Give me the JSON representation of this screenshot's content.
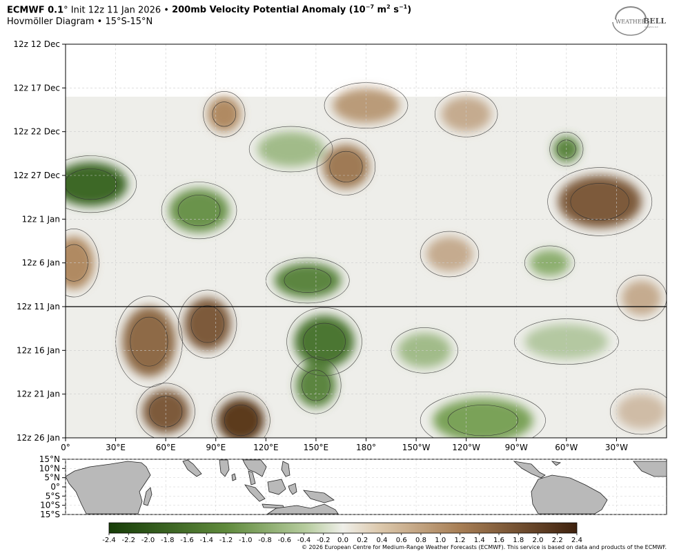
{
  "header": {
    "model": "ECMWF 0.1",
    "init": "° Init 12z 11 Jan 2026 •",
    "field": "200mb Velocity Potential Anomaly (10",
    "units_exp": "−7",
    "units_mid": " m",
    "units_exp2": "2",
    "units_end": " s",
    "units_exp3": "−1",
    "units_close": ")",
    "subtitle": "Hovmöller Diagram • 15°S-15°N"
  },
  "logo": {
    "text_a": "WEATHER",
    "text_b": "BELL",
    "sub": "Analytics LLC"
  },
  "footer": "© 2026 European Centre for Medium-Range Weather Forecasts (ECMWF). This service is based on data and products of the ECMWF.",
  "colors": {
    "neg_strong": "#1e4a0c",
    "neg_mid": "#7aa258",
    "neutral": "#eeeeea",
    "pos_mid": "#b08a62",
    "pos_strong": "#4a2a12",
    "land": "#b9b9b9"
  },
  "chart_data": {
    "type": "heatmap",
    "title": "200mb Velocity Potential Anomaly",
    "subtitle": "Hovmöller Diagram • 15°S-15°N",
    "y_ticks": [
      "12z 12 Dec",
      "12z 17 Dec",
      "12z 22 Dec",
      "12z 27 Dec",
      "12z 1 Jan",
      "12z 6 Jan",
      "12z 11 Jan",
      "12z 16 Jan",
      "12z 21 Jan",
      "12z 26 Jan"
    ],
    "x_ticks": [
      "0°",
      "30°E",
      "60°E",
      "90°E",
      "120°E",
      "150°E",
      "180°",
      "150°W",
      "120°W",
      "90°W",
      "60°W",
      "30°W"
    ],
    "x_range": [
      0,
      360
    ],
    "data_start": "12z 18 Dec",
    "forecast_init_line": "12z 11 Jan",
    "grid": true,
    "colorbar": {
      "ticks": [
        "-2.4",
        "-2.2",
        "-2.0",
        "-1.8",
        "-1.6",
        "-1.4",
        "-1.2",
        "-1.0",
        "-0.8",
        "-0.6",
        "-0.4",
        "-0.2",
        "0.0",
        "0.2",
        "0.4",
        "0.6",
        "0.8",
        "1.0",
        "1.2",
        "1.4",
        "1.6",
        "1.8",
        "2.0",
        "2.2",
        "2.4"
      ],
      "range": [
        -2.4,
        2.4
      ]
    },
    "anomaly_blobs": [
      {
        "lon": 15,
        "date": "28 Dec",
        "value": -2.0,
        "lon_spread": 22,
        "day_spread": 2.5
      },
      {
        "lon": 80,
        "date": "31 Dec",
        "value": -1.4,
        "lon_spread": 18,
        "day_spread": 2.5
      },
      {
        "lon": 95,
        "date": "20 Dec",
        "value": 1.2,
        "lon_spread": 10,
        "day_spread": 2
      },
      {
        "lon": 135,
        "date": "24 Dec",
        "value": -0.8,
        "lon_spread": 20,
        "day_spread": 2
      },
      {
        "lon": 168,
        "date": "26 Dec",
        "value": 1.4,
        "lon_spread": 14,
        "day_spread": 2.5
      },
      {
        "lon": 180,
        "date": "19 Dec",
        "value": 1.0,
        "lon_spread": 20,
        "day_spread": 2
      },
      {
        "lon": 240,
        "date": "20 Dec",
        "value": 0.8,
        "lon_spread": 15,
        "day_spread": 2
      },
      {
        "lon": 300,
        "date": "24 Dec",
        "value": -1.6,
        "lon_spread": 8,
        "day_spread": 1.5
      },
      {
        "lon": 320,
        "date": "30 Dec",
        "value": 1.8,
        "lon_spread": 25,
        "day_spread": 3
      },
      {
        "lon": 5,
        "date": "6 Jan",
        "value": 1.2,
        "lon_spread": 12,
        "day_spread": 3
      },
      {
        "lon": 145,
        "date": "8 Jan",
        "value": -1.6,
        "lon_spread": 20,
        "day_spread": 2
      },
      {
        "lon": 230,
        "date": "5 Jan",
        "value": 0.8,
        "lon_spread": 14,
        "day_spread": 2
      },
      {
        "lon": 290,
        "date": "6 Jan",
        "value": -1.0,
        "lon_spread": 12,
        "day_spread": 1.5
      },
      {
        "lon": 345,
        "date": "10 Jan",
        "value": 0.8,
        "lon_spread": 12,
        "day_spread": 2
      },
      {
        "lon": 50,
        "date": "15 Jan",
        "value": 1.6,
        "lon_spread": 16,
        "day_spread": 4
      },
      {
        "lon": 85,
        "date": "13 Jan",
        "value": 1.8,
        "lon_spread": 14,
        "day_spread": 3
      },
      {
        "lon": 155,
        "date": "15 Jan",
        "value": -1.8,
        "lon_spread": 18,
        "day_spread": 3
      },
      {
        "lon": 150,
        "date": "20 Jan",
        "value": -1.6,
        "lon_spread": 12,
        "day_spread": 2.5
      },
      {
        "lon": 60,
        "date": "23 Jan",
        "value": 1.8,
        "lon_spread": 14,
        "day_spread": 2.5
      },
      {
        "lon": 105,
        "date": "24 Jan",
        "value": 2.2,
        "lon_spread": 14,
        "day_spread": 2.5
      },
      {
        "lon": 215,
        "date": "16 Jan",
        "value": -0.8,
        "lon_spread": 16,
        "day_spread": 2
      },
      {
        "lon": 300,
        "date": "15 Jan",
        "value": -0.6,
        "lon_spread": 25,
        "day_spread": 2
      },
      {
        "lon": 250,
        "date": "24 Jan",
        "value": -1.2,
        "lon_spread": 30,
        "day_spread": 2.5
      },
      {
        "lon": 345,
        "date": "23 Jan",
        "value": 0.6,
        "lon_spread": 15,
        "day_spread": 2
      }
    ]
  },
  "map": {
    "lat_ticks": [
      "15°N",
      "10°N",
      "5°N",
      "0°",
      "5°S",
      "10°S",
      "15°S"
    ]
  }
}
